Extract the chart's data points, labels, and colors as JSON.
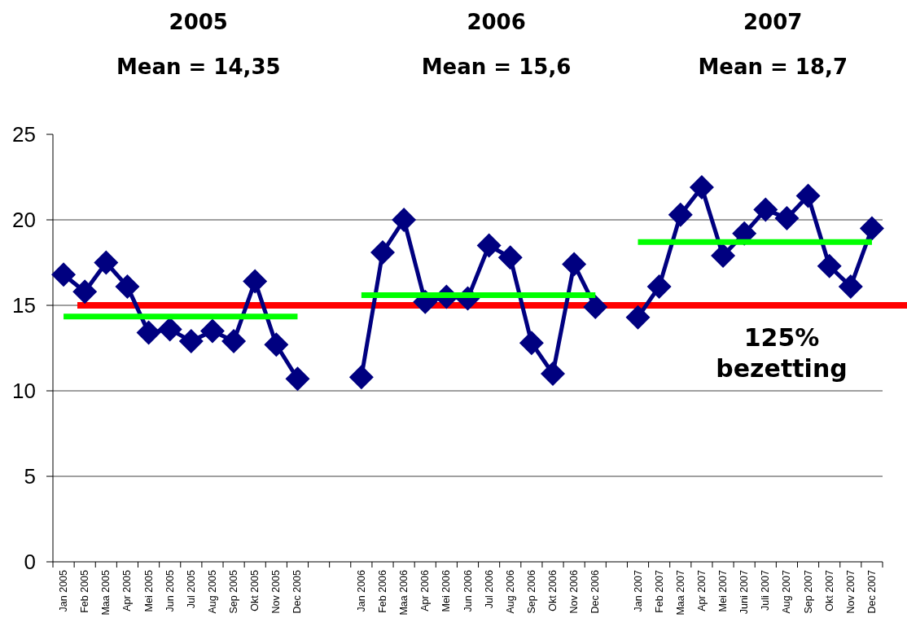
{
  "chart_data": {
    "type": "line",
    "annotations": [
      "2005",
      "Mean = 14,35",
      "2006",
      "Mean = 15,6",
      "2007",
      "Mean = 18,7"
    ],
    "categories": [
      "Jan 2005",
      "Feb 2005",
      "Maa 2005",
      "Apr 2005",
      "Mei 2005",
      "Jun 2005",
      "Jul 2005",
      "Aug 2005",
      "Sep 2005",
      "Okt 2005",
      "Nov 2005",
      "Dec 2005",
      null,
      null,
      "Jan 2006",
      "Feb 2006",
      "Maa 2006",
      "Apr 2006",
      "Mei 2006",
      "Jun 2006",
      "Jul 2006",
      "Aug 2006",
      "Sep 2006",
      "Okt 2006",
      "Nov 2006",
      "Dec 2006",
      null,
      "Jan 2007",
      "Feb 2007",
      "Maa 2007",
      "Apr 2007",
      "Mei 2007",
      "Juni 2007",
      "Juli 2007",
      "Aug 2007",
      "Sep 2007",
      "Okt 2007",
      "Nov 2007",
      "Dec 2007"
    ],
    "series": [
      {
        "color": "#000080",
        "marker": "diamond",
        "values": [
          16.8,
          15.8,
          17.5,
          16.1,
          13.4,
          13.6,
          12.9,
          13.5,
          12.9,
          16.4,
          12.7,
          10.7,
          null,
          null,
          10.8,
          18.1,
          20.0,
          15.2,
          15.5,
          15.4,
          18.5,
          17.8,
          12.8,
          11.0,
          17.4,
          14.9,
          null,
          14.3,
          16.1,
          20.3,
          21.9,
          17.9,
          19.2,
          20.6,
          20.1,
          21.4,
          17.3,
          16.1,
          19.5
        ]
      },
      {
        "color": "#00ff00",
        "marker": "none",
        "values": [
          14.35,
          14.35,
          14.35,
          14.35,
          14.35,
          14.35,
          14.35,
          14.35,
          14.35,
          14.35,
          14.35,
          14.35,
          null,
          null,
          15.6,
          15.6,
          15.6,
          15.6,
          15.6,
          15.6,
          15.6,
          15.6,
          15.6,
          15.6,
          15.6,
          15.6,
          null,
          18.7,
          18.7,
          18.7,
          18.7,
          18.7,
          18.7,
          18.7,
          18.7,
          18.7,
          18.7,
          18.7,
          18.7
        ]
      }
    ],
    "ylim": [
      0,
      25
    ],
    "yticks": [
      0,
      5,
      10,
      15,
      20,
      25
    ],
    "grid": "y",
    "ref_lines": [
      {
        "axis": "y",
        "value": 15,
        "label": "125% bezetting",
        "color": "#ff0000"
      }
    ]
  }
}
